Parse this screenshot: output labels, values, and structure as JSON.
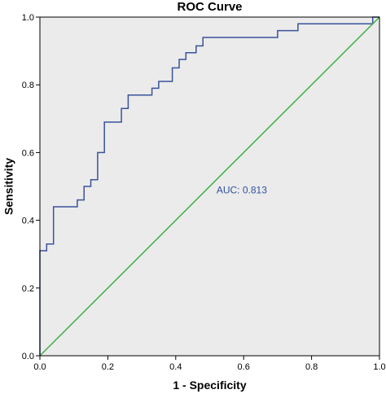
{
  "chart_data": {
    "type": "line",
    "title": "ROC Curve",
    "xlabel": "1 - Specificity",
    "ylabel": "Sensitivity",
    "xlim": [
      0,
      1
    ],
    "ylim": [
      0,
      1
    ],
    "x_ticks": [
      "0.0",
      "0.2",
      "0.4",
      "0.6",
      "0.8",
      "1.0"
    ],
    "y_ticks": [
      "0.0",
      "0.2",
      "0.4",
      "0.6",
      "0.8",
      "1.0"
    ],
    "grid": false,
    "background_color": "#ebebeb",
    "annotation": {
      "text": "AUC: 0.813",
      "x": 0.52,
      "y": 0.48,
      "color": "#30509a"
    },
    "series": [
      {
        "color": "#3a539b",
        "x": [
          0.0,
          0.0,
          0.0,
          0.02,
          0.02,
          0.04,
          0.04,
          0.11,
          0.11,
          0.13,
          0.13,
          0.15,
          0.15,
          0.17,
          0.17,
          0.19,
          0.19,
          0.24,
          0.24,
          0.26,
          0.26,
          0.33,
          0.33,
          0.35,
          0.35,
          0.39,
          0.39,
          0.41,
          0.41,
          0.43,
          0.43,
          0.46,
          0.46,
          0.48,
          0.48,
          0.5,
          0.5,
          0.7,
          0.7,
          0.76,
          0.76,
          0.98,
          0.98,
          1.0
        ],
        "y": [
          0.0,
          0.0,
          0.31,
          0.31,
          0.33,
          0.33,
          0.44,
          0.44,
          0.46,
          0.46,
          0.5,
          0.5,
          0.52,
          0.52,
          0.6,
          0.6,
          0.69,
          0.69,
          0.73,
          0.73,
          0.77,
          0.77,
          0.79,
          0.79,
          0.81,
          0.81,
          0.85,
          0.85,
          0.875,
          0.875,
          0.895,
          0.895,
          0.915,
          0.915,
          0.94,
          0.94,
          0.94,
          0.94,
          0.96,
          0.96,
          0.98,
          0.98,
          1.0,
          1.0
        ]
      },
      {
        "color": "#3cb043",
        "x": [
          0,
          1
        ],
        "y": [
          0,
          1
        ]
      }
    ]
  }
}
